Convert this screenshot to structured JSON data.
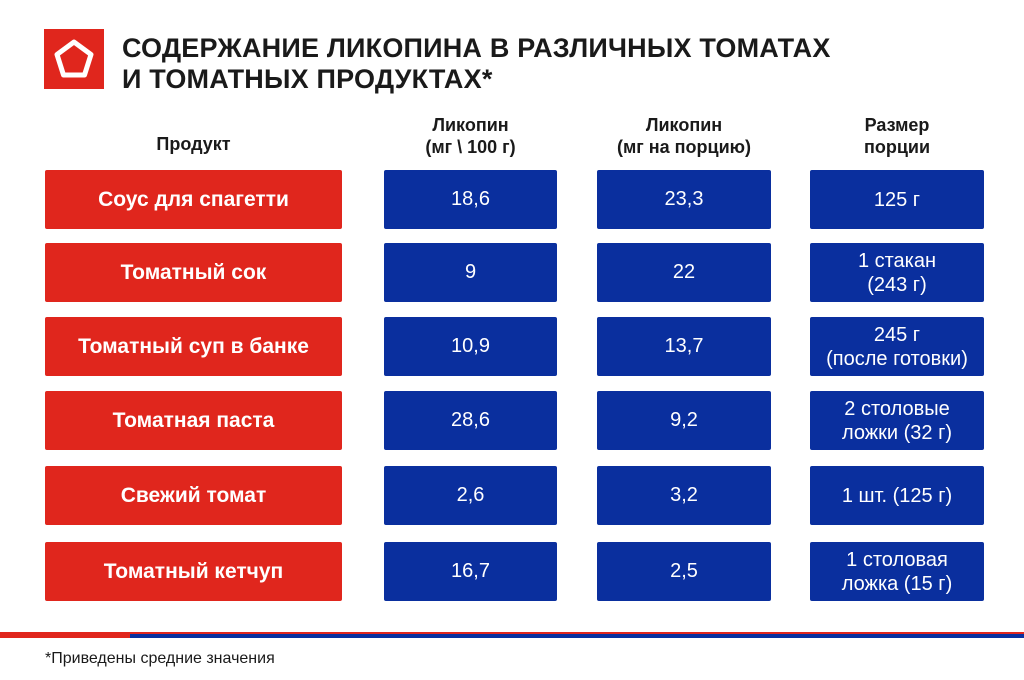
{
  "header": {
    "title_line1": "СОДЕРЖАНИЕ ЛИКОПИНА В РАЗЛИЧНЫХ ТОМАТАХ",
    "title_line2": "И ТОМАТНЫХ ПРОДУКТАХ*",
    "logo_icon": "pentagon-icon"
  },
  "columns": {
    "product": "Продукт",
    "per100_line1": "Ликопин",
    "per100_line2": "(мг \\ 100 г)",
    "perportion_line1": "Ликопин",
    "perportion_line2": "(мг на порцию)",
    "size_line1": "Размер",
    "size_line2": "порции"
  },
  "rows": [
    {
      "product": "Соус для спагетти",
      "per100": "18,6",
      "perportion": "23,3",
      "size1": "125 г",
      "size2": ""
    },
    {
      "product": "Томатный сок",
      "per100": "9",
      "perportion": "22",
      "size1": "1 стакан",
      "size2": "(243 г)"
    },
    {
      "product": "Томатный суп в банке",
      "per100": "10,9",
      "perportion": "13,7",
      "size1": "245 г",
      "size2": "(после готовки)"
    },
    {
      "product": "Томатная паста",
      "per100": "28,6",
      "perportion": "9,2",
      "size1": "2 столовые",
      "size2": "ложки (32 г)"
    },
    {
      "product": "Свежий томат",
      "per100": "2,6",
      "perportion": "3,2",
      "size1": "1 шт. (125 г)",
      "size2": ""
    },
    {
      "product": "Томатный кетчуп",
      "per100": "16,7",
      "perportion": "2,5",
      "size1": "1 столовая",
      "size2": "ложка (15 г)"
    }
  ],
  "footnote": "*Приведены средние значения",
  "colors": {
    "red": "#e0261d",
    "blue": "#0a2f9e",
    "text": "#1a1a1a"
  }
}
